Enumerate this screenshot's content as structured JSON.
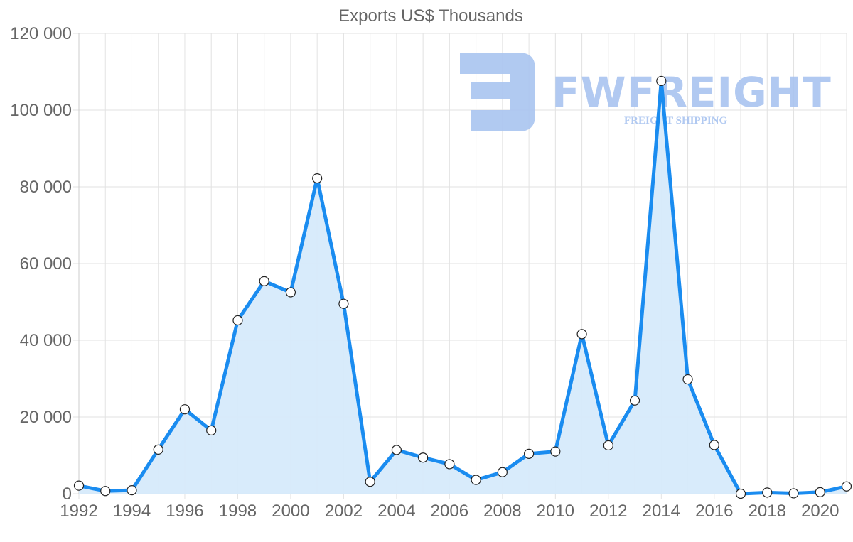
{
  "chart_data": {
    "type": "area",
    "title": "Exports US$ Thousands",
    "xlabel": "",
    "ylabel": "",
    "ylim": [
      0,
      120000
    ],
    "yticks": [
      0,
      20000,
      40000,
      60000,
      80000,
      100000,
      120000
    ],
    "ytick_labels": [
      "0",
      "20 000",
      "40 000",
      "60 000",
      "80 000",
      "100 000",
      "120 000"
    ],
    "xtick_labels": [
      "1992",
      "1994",
      "1996",
      "1998",
      "2000",
      "2002",
      "2004",
      "2006",
      "2008",
      "2010",
      "2012",
      "2014",
      "2016",
      "2018",
      "2020"
    ],
    "grid": true,
    "legend": null,
    "categories": [
      1992,
      1993,
      1994,
      1995,
      1996,
      1997,
      1998,
      1999,
      2000,
      2001,
      2002,
      2003,
      2004,
      2005,
      2006,
      2007,
      2008,
      2009,
      2010,
      2011,
      2012,
      2013,
      2014,
      2015,
      2016,
      2017,
      2018,
      2019,
      2020,
      2021
    ],
    "series": [
      {
        "name": "Exports",
        "values": [
          2100,
          700,
          900,
          11500,
          22000,
          16500,
          45200,
          55400,
          52500,
          82200,
          49500,
          3100,
          11400,
          9400,
          7700,
          3600,
          5600,
          10400,
          11000,
          41600,
          12600,
          24300,
          107600,
          29800,
          12700,
          0,
          300,
          100,
          400,
          1900
        ]
      }
    ]
  },
  "colors": {
    "line": "#1a8cf0",
    "fill": "#d6eafb",
    "grid": "#e2e2e2",
    "axis": "#cccccc",
    "text": "#666666",
    "watermark": "#a9c4f0"
  },
  "watermark": {
    "brand": "FWFREIGHT",
    "tagline": "FREIGHT SHIPPING"
  }
}
